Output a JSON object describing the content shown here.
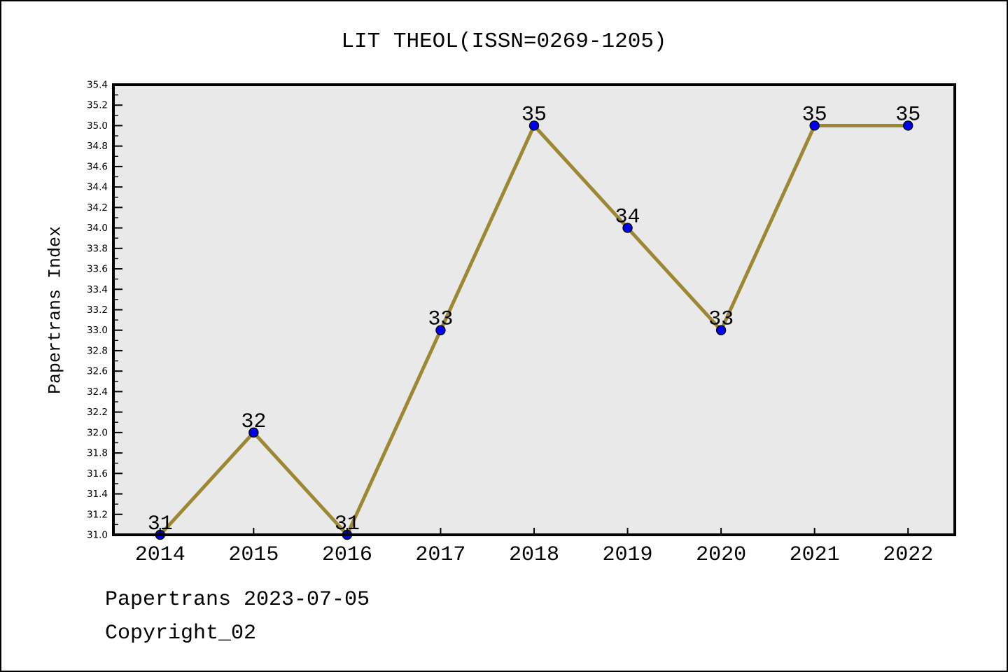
{
  "chart_data": {
    "type": "line",
    "title": "LIT THEOL(ISSN=0269-1205)",
    "xlabel": "",
    "ylabel": "Papertrans Index",
    "x": [
      2014,
      2015,
      2016,
      2017,
      2018,
      2019,
      2020,
      2021,
      2022
    ],
    "values": [
      31,
      32,
      31,
      33,
      35,
      34,
      33,
      35,
      35
    ],
    "point_labels": [
      "31",
      "32",
      "31",
      "33",
      "35",
      "34",
      "33",
      "35",
      "35"
    ],
    "xlim": [
      2013.5,
      2022.5
    ],
    "ylim": [
      31.0,
      35.4
    ],
    "ytick_step": 0.2,
    "ytick_minor_step": 0.1,
    "grid": false,
    "colors": {
      "line": "#9c8833",
      "marker_fill": "#0000ee",
      "marker_edge": "#000000",
      "plot_background": "#e9e9e9",
      "frame": "#000000",
      "text": "#000000",
      "page_background": "#ffffff"
    }
  },
  "footer": {
    "line1": "Papertrans 2023-07-05",
    "line2": "Copyright_02"
  }
}
